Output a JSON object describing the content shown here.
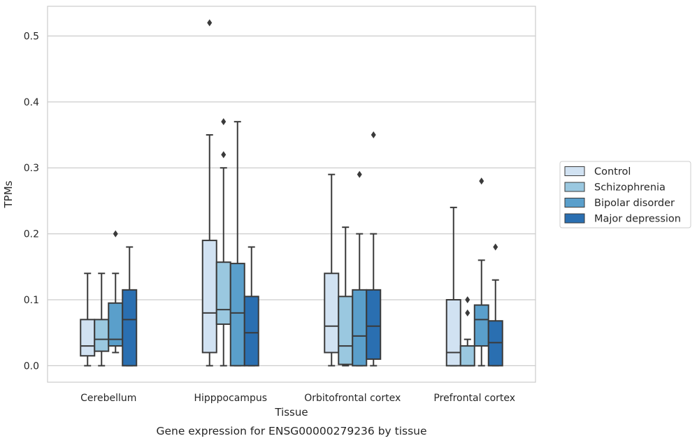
{
  "chart_data": {
    "type": "box",
    "title": "",
    "caption": "Gene expression for ENSG00000279236 by tissue",
    "xlabel": "Tissue",
    "ylabel": "TPMs",
    "ylim": [
      -0.025,
      0.545
    ],
    "yticks": [
      0.0,
      0.1,
      0.2,
      0.3,
      0.4,
      0.5
    ],
    "ytick_labels": [
      "0.0",
      "0.1",
      "0.2",
      "0.3",
      "0.4",
      "0.5"
    ],
    "grid": true,
    "legend_position": "right",
    "categories": [
      "Cerebellum",
      "Hipppocampus",
      "Orbitofrontal cortex",
      "Prefrontal cortex"
    ],
    "series": [
      {
        "name": "Control",
        "color": "#d1e2f2",
        "boxes": [
          {
            "whisker_low": 0.0,
            "q1": 0.015,
            "median": 0.03,
            "q3": 0.07,
            "whisker_high": 0.14,
            "outliers": []
          },
          {
            "whisker_low": 0.0,
            "q1": 0.02,
            "median": 0.08,
            "q3": 0.19,
            "whisker_high": 0.35,
            "outliers": [
              0.52
            ]
          },
          {
            "whisker_low": 0.0,
            "q1": 0.02,
            "median": 0.06,
            "q3": 0.14,
            "whisker_high": 0.29,
            "outliers": []
          },
          {
            "whisker_low": 0.0,
            "q1": 0.0,
            "median": 0.02,
            "q3": 0.1,
            "whisker_high": 0.24,
            "outliers": []
          }
        ]
      },
      {
        "name": "Schizophrenia",
        "color": "#9ac8e0",
        "boxes": [
          {
            "whisker_low": 0.0,
            "q1": 0.022,
            "median": 0.04,
            "q3": 0.07,
            "whisker_high": 0.14,
            "outliers": []
          },
          {
            "whisker_low": 0.0,
            "q1": 0.063,
            "median": 0.085,
            "q3": 0.157,
            "whisker_high": 0.3,
            "outliers": [
              0.32,
              0.37
            ]
          },
          {
            "whisker_low": 0.0,
            "q1": 0.002,
            "median": 0.03,
            "q3": 0.105,
            "whisker_high": 0.21,
            "outliers": []
          },
          {
            "whisker_low": 0.0,
            "q1": 0.0,
            "median": 0.0,
            "q3": 0.03,
            "whisker_high": 0.04,
            "outliers": [
              0.08,
              0.1
            ]
          }
        ]
      },
      {
        "name": "Bipolar disorder",
        "color": "#5a9fcb",
        "boxes": [
          {
            "whisker_low": 0.02,
            "q1": 0.03,
            "median": 0.04,
            "q3": 0.095,
            "whisker_high": 0.14,
            "outliers": [
              0.2
            ]
          },
          {
            "whisker_low": 0.0,
            "q1": 0.0,
            "median": 0.08,
            "q3": 0.155,
            "whisker_high": 0.37,
            "outliers": []
          },
          {
            "whisker_low": 0.0,
            "q1": 0.0,
            "median": 0.045,
            "q3": 0.115,
            "whisker_high": 0.2,
            "outliers": [
              0.29
            ]
          },
          {
            "whisker_low": 0.0,
            "q1": 0.03,
            "median": 0.07,
            "q3": 0.092,
            "whisker_high": 0.16,
            "outliers": [
              0.28
            ]
          }
        ]
      },
      {
        "name": "Major depression",
        "color": "#2a6fb1",
        "boxes": [
          {
            "whisker_low": 0.0,
            "q1": 0.0,
            "median": 0.07,
            "q3": 0.115,
            "whisker_high": 0.18,
            "outliers": []
          },
          {
            "whisker_low": 0.0,
            "q1": 0.0,
            "median": 0.05,
            "q3": 0.105,
            "whisker_high": 0.18,
            "outliers": []
          },
          {
            "whisker_low": 0.0,
            "q1": 0.01,
            "median": 0.06,
            "q3": 0.115,
            "whisker_high": 0.2,
            "outliers": [
              0.35
            ]
          },
          {
            "whisker_low": 0.0,
            "q1": 0.0,
            "median": 0.035,
            "q3": 0.068,
            "whisker_high": 0.13,
            "outliers": [
              0.18
            ]
          }
        ]
      }
    ]
  }
}
